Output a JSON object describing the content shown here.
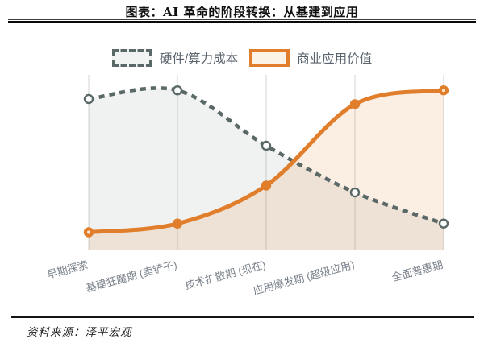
{
  "header": {
    "title": "图表：AI 革命的阶段转换：从基建到应用"
  },
  "footer": {
    "source": "资料来源：泽平宏观"
  },
  "chart_data": {
    "type": "line",
    "title": "图表：AI 革命的阶段转换：从基建到应用",
    "categories": [
      "早期探索",
      "基建狂魔期 (卖铲子)",
      "技术扩散期 (现在)",
      "应用爆发期 (超级应用)",
      "全面普惠期"
    ],
    "series": [
      {
        "name": "硬件/算力成本",
        "values": [
          87,
          92,
          60,
          33,
          15
        ],
        "line_style": "dashed",
        "color": "#5A6868",
        "fill": "rgba(90,104,104,0.09)",
        "marker": "hollow"
      },
      {
        "name": "商业应用价值",
        "values": [
          10,
          15,
          37,
          84,
          92
        ],
        "line_style": "solid",
        "color": "#E07E2B",
        "fill": "rgba(224,126,40,0.13)",
        "marker": "solid"
      }
    ],
    "xlabel": "",
    "ylabel": "",
    "ylim": [
      0,
      100
    ],
    "grid": "vertical-only",
    "gridline_color": "#DEE1E2",
    "legend_position": "top-center",
    "smooth": true
  }
}
